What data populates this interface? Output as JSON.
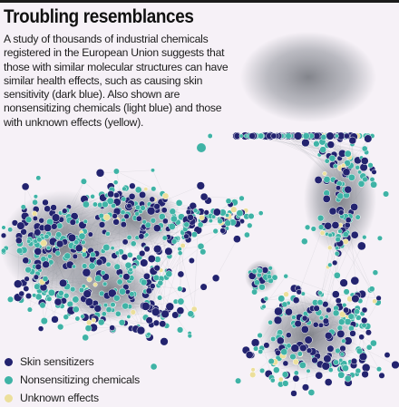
{
  "title": "Troubling resemblances",
  "caption": "A study of thousands of industrial chemicals registered in the European Union suggests that those with similar molecular structures can have similar health effects, such as causing skin sensitivity (dark blue). Also shown are nonsensitizing chemicals (light blue) and those with unknown effects (yellow).",
  "legend": [
    {
      "label": "Skin sensitizers",
      "color": "#23236f"
    },
    {
      "label": "Nonsensitizing chemicals",
      "color": "#3fb3a6"
    },
    {
      "label": "Unknown effects",
      "color": "#ecdf9b"
    }
  ],
  "colors": {
    "background": "#f6f1f7",
    "edges": "#8a8e96",
    "node_outline": "#ffffff"
  },
  "clusters": [
    {
      "name": "left-cluster",
      "node_mix": {
        "sensitizer": 0.4,
        "nonsensitizing": 0.55,
        "unknown": 0.05
      }
    },
    {
      "name": "right-chain",
      "node_mix": {
        "sensitizer": 0.42,
        "nonsensitizing": 0.52,
        "unknown": 0.06
      }
    },
    {
      "name": "center-small-cluster",
      "node_mix": {
        "sensitizer": 0.3,
        "nonsensitizing": 0.7,
        "unknown": 0.0
      }
    },
    {
      "name": "isolated-node",
      "node_mix": {
        "sensitizer": 0.0,
        "nonsensitizing": 1.0,
        "unknown": 0.0
      }
    }
  ]
}
